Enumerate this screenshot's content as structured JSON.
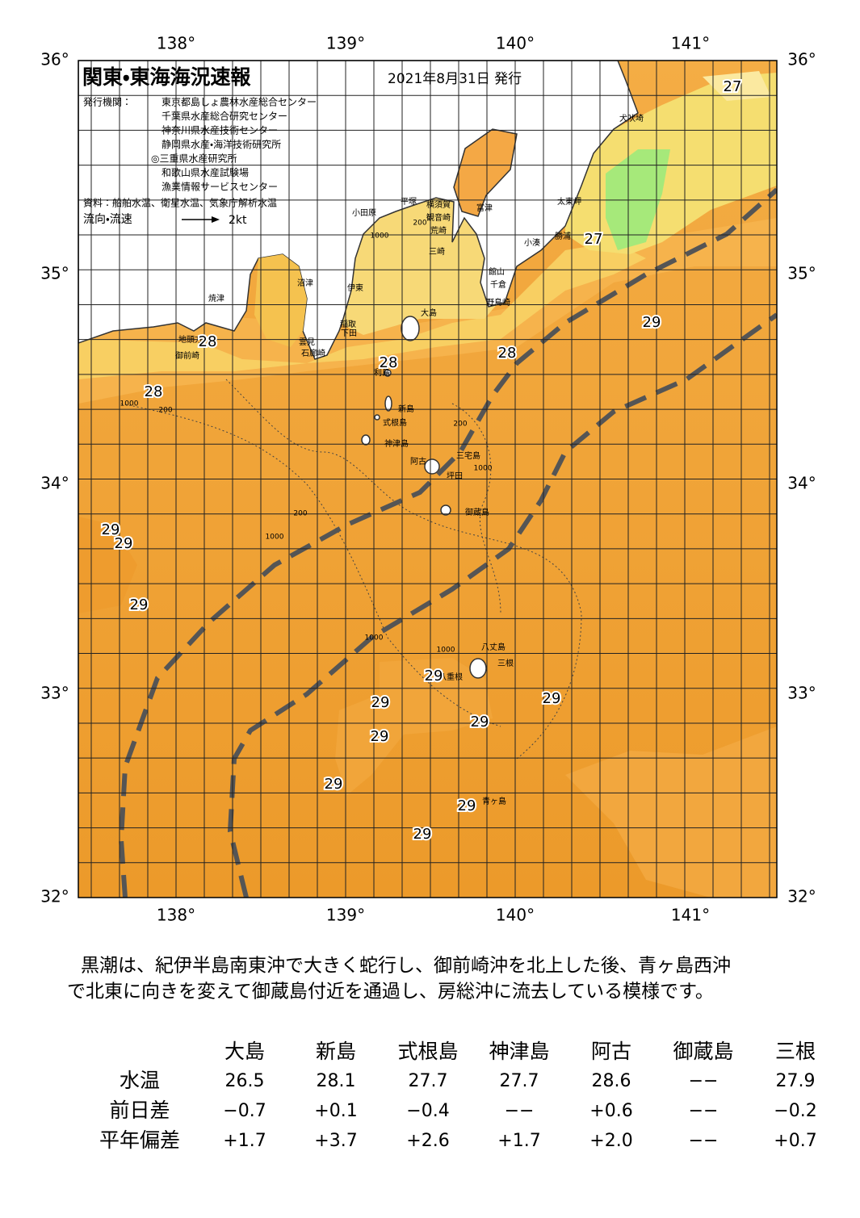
{
  "map": {
    "title": "関東・東海海況速報",
    "date": "2021年8月31日 発行",
    "issuer_label": "発行機関：",
    "issuers": [
      "東京都島しょ農林水産総合センター",
      "千葉県水産総合研究センター",
      "神奈川県水産技術センター",
      "静岡県水産・海洋技術研究所",
      "◎三重県水産研究所",
      "和歌山県水産試験場",
      "漁業情報サービスセンター"
    ],
    "source": "資料：船舶水温、衛星水温、気象庁解析水温",
    "legend": {
      "label": "流向・流速",
      "speed": "2kt"
    },
    "lon_labels": [
      "138°",
      "139°",
      "140°",
      "141°"
    ],
    "lat_labels": [
      "36°",
      "35°",
      "34°",
      "33°",
      "32°"
    ],
    "places": [
      "犬吠埼",
      "太東岬",
      "勝浦",
      "小湊",
      "館山",
      "千倉",
      "野島崎",
      "富津",
      "横須賀",
      "観音崎",
      "平塚",
      "荒崎",
      "小田原",
      "三崎",
      "沼津",
      "伊東",
      "焼津",
      "大島",
      "稲取",
      "下田",
      "雲見",
      "石廊崎",
      "地頭方",
      "御前崎",
      "利島",
      "新島",
      "式根島",
      "神津島",
      "阿古",
      "三宅島",
      "坪田",
      "御蔵島",
      "八丈島",
      "三根",
      "八重根",
      "青ヶ島"
    ],
    "temperatures": [
      "27",
      "27",
      "29",
      "28",
      "28",
      "28",
      "28",
      "29",
      "29",
      "29",
      "29",
      "29",
      "29",
      "29",
      "29",
      "29",
      "29",
      "29"
    ],
    "isobaths": [
      "200",
      "1000",
      "200",
      "1000",
      "200",
      "1000",
      "1000",
      "1000",
      "1000",
      "200"
    ]
  },
  "description": [
    "黒潮は、紀伊半島南東沖で大きく蛇行し、御前崎沖を北上した後、青ヶ島西沖",
    "で北東に向きを変えて御蔵島付近を通過し、房総沖に流去している模様です。"
  ],
  "table": {
    "columns": [
      "大島",
      "新島",
      "式根島",
      "神津島",
      "阿古",
      "御蔵島",
      "三根"
    ],
    "rows": [
      {
        "label": "水温",
        "values": [
          "26.5",
          "28.1",
          "27.7",
          "27.7",
          "28.6",
          "−−",
          "27.9"
        ]
      },
      {
        "label": "前日差",
        "values": [
          "−0.7",
          "+0.1",
          "−0.4",
          "−−",
          "+0.6",
          "−−",
          "−0.2"
        ]
      },
      {
        "label": "平年偏差",
        "values": [
          "+1.7",
          "+3.7",
          "+2.6",
          "+1.7",
          "+2.0",
          "−−",
          "+0.7"
        ]
      }
    ]
  }
}
